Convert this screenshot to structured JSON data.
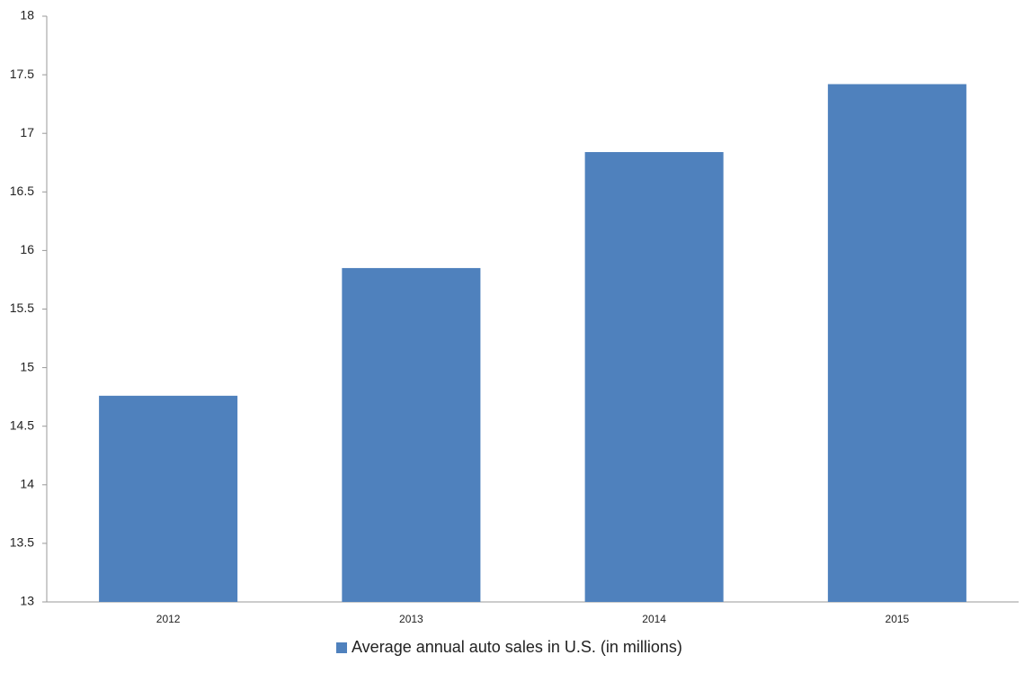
{
  "chart_data": {
    "type": "bar",
    "categories": [
      "2012",
      "2013",
      "2014",
      "2015"
    ],
    "series": [
      {
        "name": "Average annual auto sales in U.S. (in millions)",
        "color": "#4f81bd",
        "values": [
          14.76,
          15.85,
          16.84,
          17.42
        ]
      }
    ],
    "ylim": [
      13,
      18
    ],
    "yticks": [
      13,
      13.5,
      14,
      14.5,
      15,
      15.5,
      16,
      16.5,
      17,
      17.5,
      18
    ],
    "grid": false,
    "legend": "bottom"
  }
}
